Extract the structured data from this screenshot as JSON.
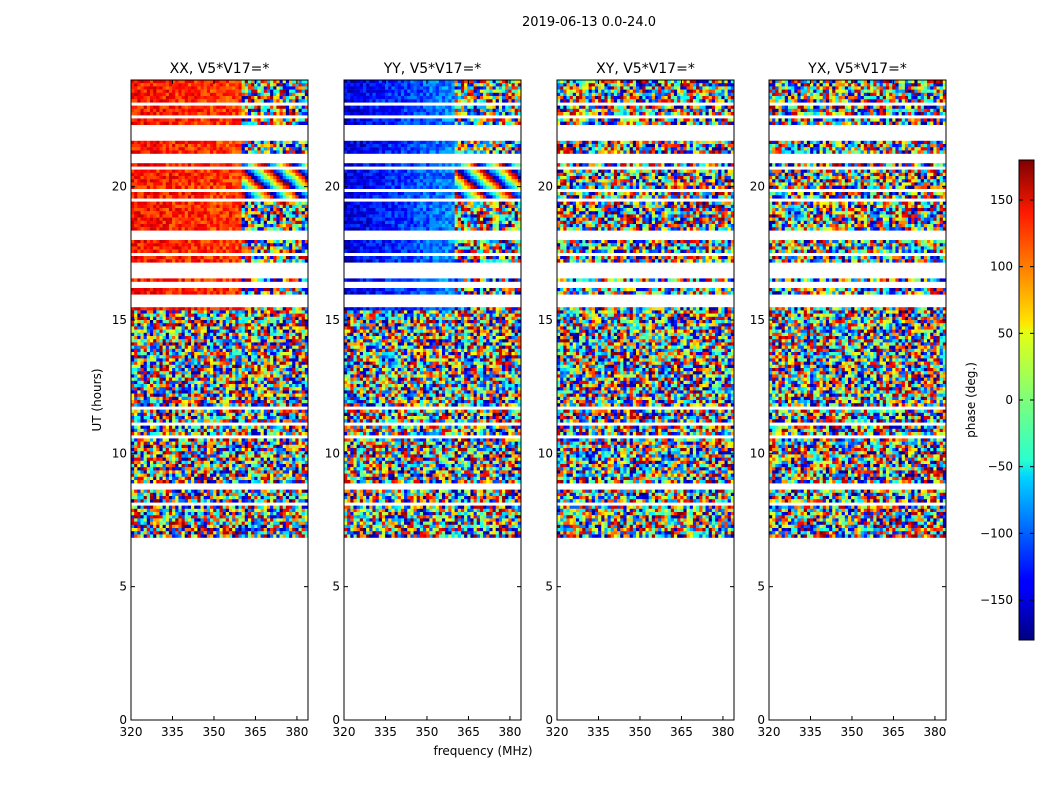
{
  "figure": {
    "suptitle": "2019-06-13 0.0-24.0"
  },
  "chart_data": {
    "type": "heatmap",
    "title": "2019-06-13 0.0-24.0",
    "xlabel": "frequency (MHz)",
    "ylabel": "UT (hours)",
    "xlim": [
      320,
      384
    ],
    "ylim": [
      0,
      24
    ],
    "x_ticks": [
      "320",
      "335",
      "350",
      "365",
      "380"
    ],
    "y_ticks": [
      "0",
      "5",
      "10",
      "15",
      "20"
    ],
    "data_range_ut_hours": [
      6.8,
      24.0
    ],
    "panels": [
      {
        "title": "XX, V5*V17=*",
        "coherent_phase_deg": 130,
        "coherent_until_mhz": 360
      },
      {
        "title": "YY, V5*V17=*",
        "coherent_phase_deg": -150,
        "coherent_until_mhz": 360
      },
      {
        "title": "XY, V5*V17=*",
        "coherent_phase_deg": null,
        "coherent_until_mhz": null
      },
      {
        "title": "YX, V5*V17=*",
        "coherent_phase_deg": null,
        "coherent_until_mhz": null
      }
    ],
    "colorbar": {
      "label": "phase (deg.)",
      "range": [
        -180,
        180
      ],
      "ticks": [
        "150",
        "100",
        "50",
        "0",
        "−50",
        "−100",
        "−150"
      ],
      "colormap": "jet"
    }
  }
}
